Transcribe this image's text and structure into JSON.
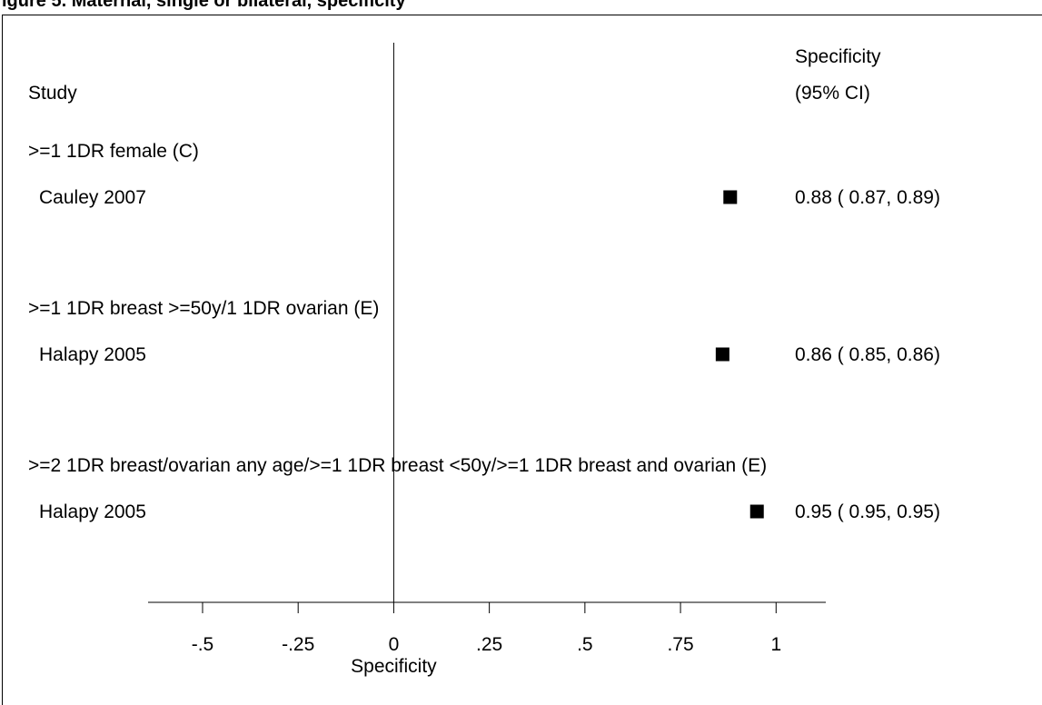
{
  "header": {
    "title": "igure 5. Maternal, single or bilateral, specificity"
  },
  "chart_data": {
    "type": "forest",
    "xlabel": "Specificity",
    "xlim": [
      -0.6425,
      1.13
    ],
    "xticks": [
      {
        "value": -0.5,
        "label": "-.5"
      },
      {
        "value": -0.25,
        "label": "-.25"
      },
      {
        "value": 0,
        "label": "0"
      },
      {
        "value": 0.25,
        "label": ".25"
      },
      {
        "value": 0.5,
        "label": ".5"
      },
      {
        "value": 0.75,
        "label": ".75"
      },
      {
        "value": 1,
        "label": "1"
      }
    ],
    "reference_line": 0,
    "column_headers": {
      "study": "Study",
      "estimate_line1": "Specificity",
      "estimate_line2": "(95% CI)"
    },
    "groups": [
      {
        "label": ">=1 1DR female (C)",
        "studies": [
          {
            "name": "Cauley 2007",
            "estimate": 0.88,
            "ci_low": 0.87,
            "ci_high": 0.89,
            "text": "0.88 ( 0.87, 0.89)"
          }
        ]
      },
      {
        "label": ">=1 1DR breast >=50y/1 1DR ovarian (E)",
        "studies": [
          {
            "name": "Halapy 2005",
            "estimate": 0.86,
            "ci_low": 0.85,
            "ci_high": 0.86,
            "text": "0.86 ( 0.85, 0.86)"
          }
        ]
      },
      {
        "label": ">=2 1DR breast/ovarian any age/>=1 1DR breast <50y/>=1 1DR breast and ovarian (E)",
        "studies": [
          {
            "name": "Halapy 2005",
            "estimate": 0.95,
            "ci_low": 0.95,
            "ci_high": 0.95,
            "text": "0.95 ( 0.95, 0.95)"
          }
        ]
      }
    ]
  }
}
